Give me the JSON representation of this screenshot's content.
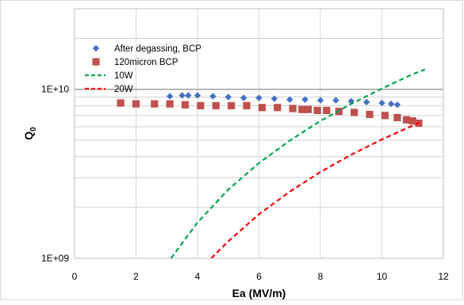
{
  "chart_data": {
    "type": "scatter",
    "title": "",
    "xlabel": "Ea (MV/m)",
    "ylabel_main": "Q",
    "ylabel_sub": "0",
    "xlim": [
      0,
      12
    ],
    "ylim": [
      1000000000,
      30000000000
    ],
    "yscale": "log",
    "x_ticks": [
      0,
      2,
      4,
      6,
      8,
      10,
      12
    ],
    "x_tick_labels": [
      "0",
      "2",
      "4",
      "6",
      "8",
      "10",
      "12"
    ],
    "y_ticks": [
      1000000000,
      10000000000
    ],
    "y_tick_labels": [
      "1E+09",
      "1E+10"
    ],
    "grid": true,
    "legend_position": "top-left",
    "series": [
      {
        "name": "After degassing, BCP",
        "kind": "marker",
        "marker": "diamond",
        "color": "#4472c4",
        "x": [
          3.1,
          3.5,
          3.7,
          4.0,
          4.5,
          5.0,
          5.5,
          6.0,
          6.5,
          7.0,
          7.5,
          8.0,
          8.5,
          9.0,
          9.5,
          10.0,
          10.3,
          10.5
        ],
        "y": [
          9100000000.0,
          9200000000.0,
          9200000000.0,
          9200000000.0,
          9100000000.0,
          9000000000.0,
          8900000000.0,
          8900000000.0,
          8800000000.0,
          8700000000.0,
          8700000000.0,
          8600000000.0,
          8600000000.0,
          8500000000.0,
          8400000000.0,
          8300000000.0,
          8200000000.0,
          8100000000.0
        ]
      },
      {
        "name": "120micron BCP",
        "kind": "marker",
        "marker": "square",
        "color": "#c0504d",
        "x": [
          1.5,
          2.0,
          2.6,
          3.1,
          3.6,
          4.1,
          4.6,
          5.1,
          5.6,
          6.1,
          6.6,
          7.1,
          7.4,
          7.6,
          7.9,
          8.2,
          8.6,
          9.1,
          9.6,
          10.1,
          10.5,
          10.8,
          11.0,
          11.2
        ],
        "y": [
          8300000000.0,
          8200000000.0,
          8200000000.0,
          8200000000.0,
          8100000000.0,
          8000000000.0,
          8000000000.0,
          8000000000.0,
          8000000000.0,
          7800000000.0,
          7800000000.0,
          7700000000.0,
          7600000000.0,
          7600000000.0,
          7500000000.0,
          7500000000.0,
          7400000000.0,
          7300000000.0,
          7100000000.0,
          7000000000.0,
          6800000000.0,
          6600000000.0,
          6500000000.0,
          6300000000.0
        ]
      },
      {
        "name": "10W",
        "kind": "dashed-line",
        "color": "#00a651",
        "x": [
          3.14,
          4.0,
          5.0,
          6.0,
          7.0,
          8.0,
          9.0,
          10.0,
          11.0,
          11.4
        ],
        "y": [
          1000000000.0,
          1630000000.0,
          2550000000.0,
          3660000000.0,
          4970000000.0,
          6500000000.0,
          8200000000.0,
          10100000000.0,
          12300000000.0,
          13100000000.0
        ]
      },
      {
        "name": "20W",
        "kind": "dashed-line",
        "color": "#ff0000",
        "x": [
          4.45,
          5.0,
          6.0,
          7.0,
          8.0,
          9.0,
          10.0,
          11.0,
          11.3
        ],
        "y": [
          1000000000.0,
          1260000000.0,
          1820000000.0,
          2480000000.0,
          3240000000.0,
          4100000000.0,
          5050000000.0,
          6100000000.0,
          6450000000.0
        ]
      }
    ]
  }
}
